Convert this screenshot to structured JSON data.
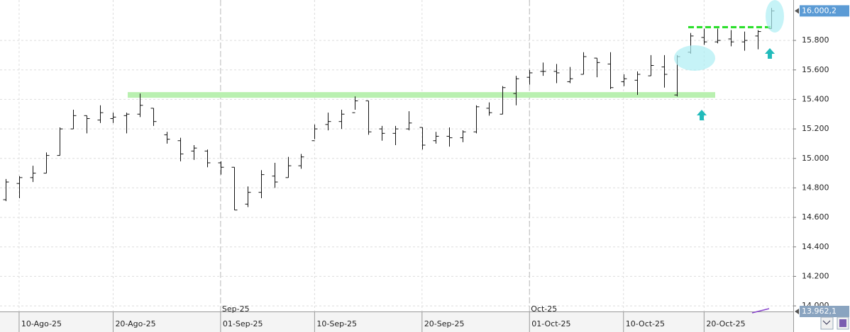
{
  "chart_data": {
    "type": "ohlc",
    "categories": [
      null,
      "10-Ago-25",
      null,
      null,
      null,
      null,
      null,
      null,
      "20-Ago-25",
      null,
      null,
      null,
      null,
      null,
      null,
      null,
      "01-Sep-25",
      null,
      null,
      null,
      null,
      null,
      null,
      "10-Sep-25",
      null,
      null,
      null,
      null,
      null,
      null,
      null,
      "20-Sep-25",
      null,
      null,
      null,
      null,
      null,
      null,
      null,
      "01-Oct-25",
      null,
      null,
      null,
      null,
      null,
      null,
      "10-Oct-25",
      null,
      null,
      null,
      null,
      null,
      "20-Oct-25",
      null,
      null,
      null,
      null,
      null
    ],
    "months": [
      null,
      null,
      null,
      null,
      null,
      null,
      null,
      null,
      null,
      null,
      null,
      null,
      null,
      null,
      null,
      null,
      "Sep-25",
      null,
      null,
      null,
      null,
      null,
      null,
      null,
      null,
      null,
      null,
      null,
      null,
      null,
      null,
      null,
      null,
      null,
      null,
      null,
      null,
      null,
      null,
      "Oct-25",
      null,
      null,
      null,
      null,
      null,
      null,
      null,
      null,
      null,
      null,
      null,
      null,
      null,
      null,
      null,
      null,
      null,
      null
    ],
    "open": [
      14720,
      14830,
      14870,
      14900,
      15020,
      15200,
      15290,
      15260,
      15270,
      15290,
      15300,
      15340,
      15160,
      15120,
      15050,
      15050,
      14970,
      14940,
      14690,
      14770,
      14880,
      14870,
      14950,
      15120,
      15230,
      15250,
      15310,
      15390,
      15200,
      15170,
      15200,
      15210,
      15120,
      15150,
      15140,
      15180,
      15340,
      15300,
      15440,
      15550,
      15590,
      15590,
      15520,
      15570,
      15680,
      15640,
      15520,
      15530,
      15560,
      15620,
      15430,
      15720,
      15820,
      15790,
      15810,
      15790,
      15830,
      15880
    ],
    "high": [
      14860,
      14880,
      14950,
      15040,
      15210,
      15330,
      15290,
      15360,
      15310,
      15310,
      15440,
      15340,
      15180,
      15140,
      15090,
      15060,
      14980,
      14940,
      14810,
      14920,
      14970,
      15010,
      15030,
      15230,
      15310,
      15330,
      15420,
      15390,
      15220,
      15220,
      15320,
      15210,
      15180,
      15210,
      15190,
      15360,
      15380,
      15490,
      15560,
      15600,
      15650,
      15640,
      15620,
      15720,
      15680,
      15720,
      15570,
      15590,
      15700,
      15700,
      15700,
      15850,
      15880,
      15880,
      15870,
      15860,
      15870,
      16020
    ],
    "low": [
      14710,
      14730,
      14840,
      14900,
      15020,
      15200,
      15170,
      15240,
      15240,
      15170,
      15280,
      15220,
      15100,
      14980,
      14990,
      14940,
      14890,
      14650,
      14670,
      14730,
      14800,
      14870,
      14930,
      15130,
      15190,
      15200,
      15330,
      15160,
      15120,
      15090,
      15190,
      15060,
      15100,
      15080,
      15110,
      15170,
      15290,
      15300,
      15360,
      15500,
      15560,
      15510,
      15510,
      15570,
      15550,
      15470,
      15490,
      15430,
      15560,
      15480,
      15420,
      15710,
      15770,
      15780,
      15760,
      15730,
      15740,
      15880
    ],
    "close": [
      14840,
      14870,
      14900,
      15020,
      15200,
      15290,
      15270,
      15310,
      15280,
      15300,
      15360,
      15250,
      15130,
      15030,
      15070,
      14970,
      14940,
      14650,
      14770,
      14890,
      14840,
      14950,
      15010,
      15200,
      15250,
      15300,
      15390,
      15180,
      15170,
      15200,
      15240,
      15090,
      15150,
      15140,
      15180,
      15350,
      15310,
      15480,
      15540,
      15580,
      15590,
      15580,
      15540,
      15690,
      15650,
      15480,
      15540,
      15570,
      15630,
      15570,
      15690,
      15830,
      15790,
      15800,
      15790,
      15800,
      15860,
      16000
    ],
    "color": "#111111",
    "ylim": [
      13962.1,
      16074
    ],
    "yticks": [
      {
        "value": 14000,
        "label": "14.000"
      },
      {
        "value": 14200,
        "label": "14.200"
      },
      {
        "value": 14400,
        "label": "14.400"
      },
      {
        "value": 14600,
        "label": "14.600"
      },
      {
        "value": 14800,
        "label": "14.800"
      },
      {
        "value": 15000,
        "label": "15.000"
      },
      {
        "value": 15200,
        "label": "15.200"
      },
      {
        "value": 15400,
        "label": "15.400"
      },
      {
        "value": 15600,
        "label": "15.600"
      },
      {
        "value": 15800,
        "label": "15.800"
      }
    ],
    "price_markers": [
      {
        "value": 16000.2,
        "label": "16.000,2"
      },
      {
        "value": 13962.1,
        "label": "13.962,1"
      }
    ],
    "levels": [
      {
        "value": 15430,
        "color": "#b9f0b0",
        "style": "solid"
      },
      {
        "value": 15890,
        "color": "#22dd22",
        "style": "dashed"
      }
    ],
    "grid": true
  }
}
